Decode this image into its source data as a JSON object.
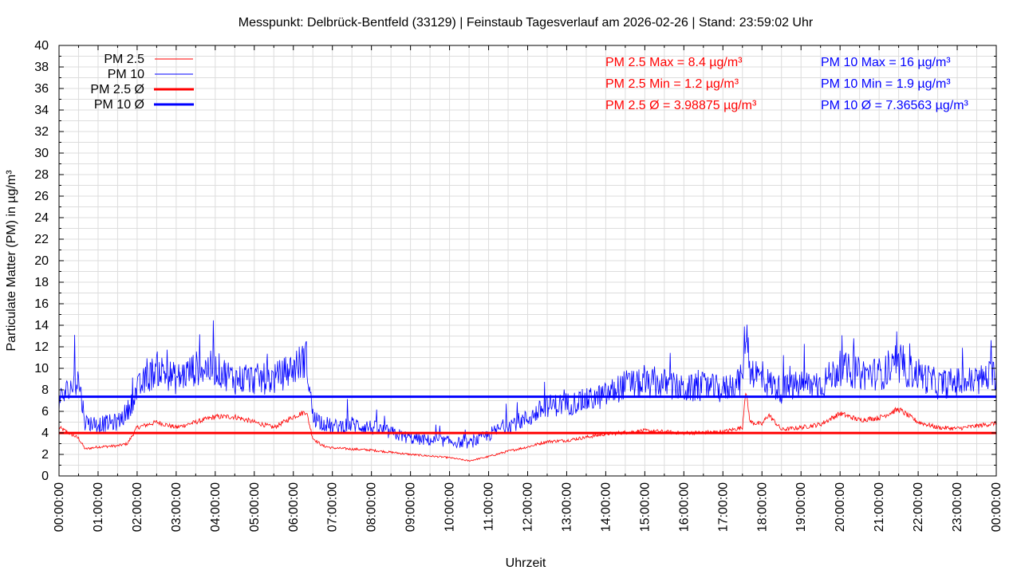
{
  "chart_data": {
    "type": "line",
    "title": "Messpunkt: Delbrück-Bentfeld (33129) | Feinstaub Tagesverlauf am 2026-02-26 | Stand: 23:59:02 Uhr",
    "xlabel": "Uhrzeit",
    "ylabel": "Particulate Matter (PM) in µg/m³",
    "xlim_hours": [
      0,
      24
    ],
    "ylim": [
      0,
      40
    ],
    "grid": true,
    "legend_position": "top-left",
    "y_ticks": [
      "0",
      "2",
      "4",
      "6",
      "8",
      "10",
      "12",
      "14",
      "16",
      "18",
      "20",
      "22",
      "24",
      "26",
      "28",
      "30",
      "32",
      "34",
      "36",
      "38",
      "40"
    ],
    "x_ticks": [
      "00:00:00",
      "01:00:00",
      "02:00:00",
      "03:00:00",
      "04:00:00",
      "05:00:00",
      "06:00:00",
      "07:00:00",
      "08:00:00",
      "09:00:00",
      "10:00:00",
      "11:00:00",
      "12:00:00",
      "13:00:00",
      "14:00:00",
      "15:00:00",
      "16:00:00",
      "17:00:00",
      "18:00:00",
      "19:00:00",
      "20:00:00",
      "21:00:00",
      "22:00:00",
      "23:00:00",
      "00:00:00"
    ],
    "legend": [
      "PM 2.5",
      "PM 10",
      "PM 2.5 Ø",
      "PM 10 Ø"
    ],
    "series": [
      {
        "name": "PM 2.5",
        "color": "#ff0000",
        "noise": 0.6,
        "x": [
          0,
          0.5,
          0.67,
          1,
          1.5,
          1.75,
          2,
          2.5,
          3,
          3.5,
          4,
          4.5,
          5,
          5.5,
          6,
          6.33,
          6.5,
          6.75,
          7,
          8,
          9,
          10,
          10.5,
          11,
          11.5,
          12,
          12.5,
          13,
          13.5,
          14,
          15,
          16,
          17,
          17.5,
          17.58,
          17.7,
          18,
          18.17,
          18.5,
          19,
          19.5,
          20,
          20.5,
          21,
          21.5,
          22,
          22.5,
          23,
          24
        ],
        "y": [
          4.5,
          3.5,
          2.5,
          2.7,
          2.8,
          3.0,
          4.5,
          5.0,
          4.5,
          5.0,
          5.5,
          5.5,
          5.0,
          4.5,
          5.5,
          6.0,
          3.5,
          2.8,
          2.6,
          2.4,
          2.0,
          1.7,
          1.4,
          1.8,
          2.3,
          2.7,
          3.2,
          3.3,
          3.6,
          3.9,
          4.2,
          4.0,
          4.1,
          4.5,
          8.0,
          5.0,
          4.8,
          5.7,
          4.3,
          4.5,
          4.8,
          5.8,
          5.2,
          5.4,
          6.2,
          5.0,
          4.5,
          4.4,
          4.9
        ]
      },
      {
        "name": "PM 10",
        "color": "#0000ff",
        "noise": 2.2,
        "x": [
          0,
          0.5,
          0.67,
          1,
          1.5,
          1.75,
          2,
          2.5,
          3,
          3.5,
          4,
          4.5,
          5,
          5.5,
          6,
          6.33,
          6.5,
          7,
          7.5,
          8,
          8.5,
          9,
          9.5,
          10,
          10.5,
          11,
          11.5,
          12,
          12.5,
          13,
          13.5,
          14,
          14.5,
          15,
          15.5,
          16,
          16.5,
          17,
          17.5,
          17.58,
          17.7,
          18,
          18.5,
          19,
          19.5,
          20,
          20.5,
          21,
          21.5,
          22,
          22.5,
          23,
          23.5,
          24
        ],
        "y": [
          7,
          9,
          5,
          4.8,
          5,
          6,
          8,
          10,
          9,
          10,
          10,
          9,
          9,
          9,
          10,
          11,
          5.5,
          4.5,
          4.8,
          4.5,
          4,
          3.5,
          3.3,
          3.2,
          3.0,
          3.8,
          4.8,
          5.3,
          6.5,
          6.7,
          7,
          7.5,
          8.5,
          8.5,
          8.6,
          8,
          8.3,
          8,
          9,
          14,
          10,
          9,
          8,
          8.5,
          8.5,
          10,
          9.5,
          9.5,
          10,
          9.5,
          8.5,
          8.7,
          8.8,
          9.5
        ]
      },
      {
        "name": "PM 2.5 Ø",
        "color": "#ff0000",
        "value": 3.98875
      },
      {
        "name": "PM 10 Ø",
        "color": "#0000ff",
        "value": 7.36563
      }
    ],
    "annotations": {
      "pm25": [
        "PM 2.5 Max = 8.4 µg/m³",
        "PM 2.5 Min = 1.2 µg/m³",
        "PM 2.5 Ø = 3.98875 µg/m³"
      ],
      "pm10": [
        "PM 10 Max = 16 µg/m³",
        "PM 10 Min = 1.9 µg/m³",
        "PM 10 Ø = 7.36563 µg/m³"
      ]
    }
  }
}
